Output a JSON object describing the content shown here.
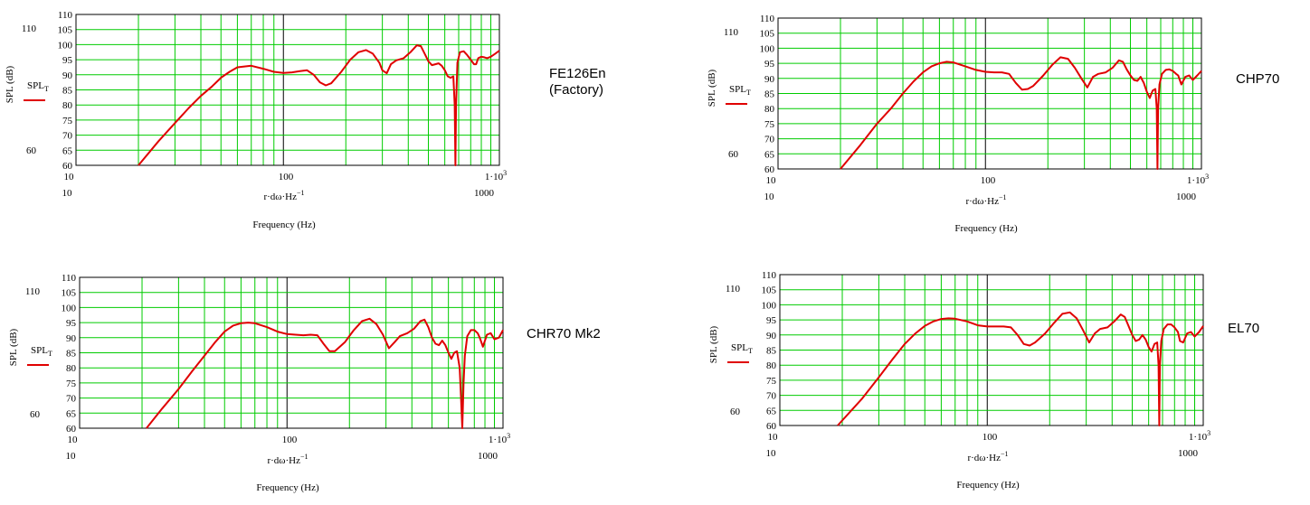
{
  "chart_data": [
    {
      "type": "line",
      "title": "FE126En (Factory)",
      "title_lines": [
        "FE126En",
        "(Factory)"
      ],
      "xlabel": "r·dω·Hz",
      "xlabel_exp": "−1",
      "xlabel2": "Frequency (Hz)",
      "ylabel": "SPL (dB)",
      "legend": "SPL",
      "legend_sub": "T",
      "xscale": "log",
      "xlim": [
        10,
        1100
      ],
      "ylim": [
        60,
        110
      ],
      "grid": true,
      "x_ticks": [
        "10",
        "100",
        "1·10"
      ],
      "x_tick_sup": "3",
      "x_extra_low": "10",
      "x_extra_high": "1000",
      "y_ticks": [
        "110",
        "105",
        "100",
        "95",
        "90",
        "85",
        "80",
        "75",
        "70",
        "65",
        "60"
      ],
      "y_extra_high": "110",
      "y_extra_low": "60",
      "color": "#e00000",
      "series": [
        {
          "x": [
            20,
            25,
            30,
            35,
            40,
            45,
            50,
            55,
            60,
            70,
            80,
            90,
            100,
            110,
            120,
            130,
            140,
            150,
            160,
            170,
            190,
            210,
            230,
            250,
            270,
            290,
            300,
            315,
            330,
            350,
            380,
            410,
            440,
            460,
            480,
            500,
            520,
            540,
            560,
            580,
            600,
            620,
            640,
            660,
            670,
            675,
            680,
            690,
            710,
            740,
            770,
            800,
            830,
            850,
            870,
            900,
            930,
            960,
            1000,
            1050,
            1100
          ],
          "y": [
            60,
            68,
            74,
            79,
            83,
            86,
            89,
            91,
            92.5,
            93,
            92,
            91,
            90.6,
            90.8,
            91.2,
            91.5,
            90,
            87.5,
            86.5,
            87.2,
            91,
            95,
            97.5,
            98.2,
            97,
            94,
            91.5,
            90.5,
            93.5,
            94.8,
            95.5,
            97.5,
            99.8,
            99.5,
            97,
            94.5,
            93.2,
            93.5,
            93.8,
            93,
            91.5,
            89.5,
            89,
            89.5,
            80,
            60,
            80,
            94,
            97.5,
            97.8,
            96.5,
            95,
            93.5,
            93.5,
            95.5,
            96,
            95.8,
            95.5,
            96,
            97,
            98
          ]
        }
      ]
    },
    {
      "type": "line",
      "title": "CHP70",
      "title_lines": [
        "CHP70"
      ],
      "xlabel": "r·dω·Hz",
      "xlabel_exp": "−1",
      "xlabel2": "Frequency (Hz)",
      "ylabel": "SPL (dB)",
      "legend": "SPL",
      "legend_sub": "T",
      "xscale": "log",
      "xlim": [
        10,
        1100
      ],
      "ylim": [
        60,
        110
      ],
      "grid": true,
      "x_ticks": [
        "10",
        "100",
        "1·10"
      ],
      "x_tick_sup": "3",
      "x_extra_low": "10",
      "x_extra_high": "1000",
      "y_ticks": [
        "110",
        "105",
        "100",
        "95",
        "90",
        "85",
        "80",
        "75",
        "70",
        "65",
        "60"
      ],
      "y_extra_high": "110",
      "y_extra_low": "60",
      "color": "#e00000",
      "series": [
        {
          "x": [
            20,
            25,
            30,
            35,
            40,
            45,
            50,
            55,
            60,
            65,
            70,
            80,
            90,
            100,
            110,
            120,
            130,
            140,
            150,
            160,
            170,
            190,
            210,
            230,
            250,
            270,
            290,
            310,
            330,
            350,
            380,
            410,
            440,
            460,
            480,
            500,
            520,
            540,
            560,
            580,
            600,
            620,
            640,
            660,
            670,
            675,
            680,
            690,
            710,
            740,
            770,
            800,
            830,
            850,
            880,
            920,
            960,
            1000,
            1050,
            1100
          ],
          "y": [
            60,
            68,
            75,
            80,
            85,
            89,
            92,
            94,
            95,
            95.5,
            95.3,
            94,
            92.8,
            92.2,
            92,
            92,
            91.5,
            88.5,
            86.3,
            86.5,
            87.5,
            91,
            94.5,
            97,
            96.5,
            93.5,
            90,
            87,
            90.5,
            91.5,
            92,
            93.5,
            96,
            95.5,
            93,
            91,
            89.5,
            89.2,
            90.5,
            88.5,
            85.5,
            83.5,
            86,
            86.5,
            80,
            60,
            80,
            88,
            91.5,
            92.8,
            93,
            92.5,
            91.5,
            91,
            88,
            90.5,
            91,
            89.5,
            91,
            92.5
          ]
        }
      ]
    },
    {
      "type": "line",
      "title": "CHR70 Mk2",
      "title_lines": [
        "CHR70 Mk2"
      ],
      "xlabel": "r·dω·Hz",
      "xlabel_exp": "−1",
      "xlabel2": "Frequency (Hz)",
      "ylabel": "SPL (dB)",
      "legend": "SPL",
      "legend_sub": "T",
      "xscale": "log",
      "xlim": [
        10,
        1100
      ],
      "ylim": [
        60,
        110
      ],
      "grid": true,
      "x_ticks": [
        "10",
        "100",
        "1·10"
      ],
      "x_tick_sup": "3",
      "x_extra_low": "10",
      "x_extra_high": "1000",
      "y_ticks": [
        "110",
        "105",
        "100",
        "95",
        "90",
        "85",
        "80",
        "75",
        "70",
        "65",
        "60"
      ],
      "y_extra_high": "110",
      "y_extra_low": "60",
      "color": "#e00000",
      "series": [
        {
          "x": [
            21,
            25,
            30,
            35,
            40,
            45,
            50,
            55,
            60,
            65,
            70,
            80,
            90,
            100,
            110,
            120,
            130,
            140,
            150,
            160,
            170,
            190,
            210,
            230,
            250,
            270,
            290,
            310,
            330,
            350,
            380,
            410,
            440,
            460,
            480,
            500,
            520,
            540,
            560,
            580,
            600,
            620,
            640,
            660,
            680,
            690,
            700,
            710,
            720,
            740,
            770,
            800,
            830,
            850,
            880,
            920,
            960,
            1000,
            1050,
            1100
          ],
          "y": [
            60,
            66.5,
            73,
            79,
            84,
            88.5,
            92,
            94,
            94.8,
            95,
            94.8,
            93.5,
            92,
            91.2,
            91,
            90.8,
            91,
            90.8,
            88,
            85.5,
            85.5,
            88.5,
            92.5,
            95.5,
            96.3,
            94.5,
            91,
            86.5,
            88.5,
            90.5,
            91.5,
            93,
            95.5,
            96,
            93.5,
            90,
            88,
            87.5,
            89,
            87.5,
            85,
            83,
            85,
            85.5,
            80,
            70,
            60,
            75,
            84,
            90.5,
            92.5,
            92.5,
            91.5,
            90,
            87,
            91,
            91.5,
            89.5,
            90,
            92.5
          ]
        }
      ]
    },
    {
      "type": "line",
      "title": "EL70",
      "title_lines": [
        "EL70"
      ],
      "xlabel": "r·dω·Hz",
      "xlabel_exp": "−1",
      "xlabel2": "Frequency (Hz)",
      "ylabel": "SPL (dB)",
      "legend": "SPL",
      "legend_sub": "T",
      "xscale": "log",
      "xlim": [
        10,
        1100
      ],
      "ylim": [
        60,
        110
      ],
      "grid": true,
      "x_ticks": [
        "10",
        "100",
        "1·10"
      ],
      "x_tick_sup": "3",
      "x_extra_low": "10",
      "x_extra_high": "1000",
      "y_ticks": [
        "110",
        "105",
        "100",
        "95",
        "90",
        "85",
        "80",
        "75",
        "70",
        "65",
        "60"
      ],
      "y_extra_high": "110",
      "y_extra_low": "60",
      "color": "#e00000",
      "series": [
        {
          "x": [
            19,
            25,
            30,
            35,
            40,
            45,
            50,
            55,
            60,
            65,
            70,
            80,
            90,
            100,
            110,
            120,
            130,
            140,
            150,
            160,
            170,
            190,
            210,
            230,
            250,
            270,
            290,
            310,
            330,
            350,
            380,
            410,
            440,
            460,
            480,
            500,
            520,
            540,
            560,
            580,
            600,
            620,
            640,
            660,
            670,
            675,
            680,
            690,
            710,
            740,
            770,
            800,
            830,
            850,
            880,
            920,
            960,
            1000,
            1050,
            1100
          ],
          "y": [
            60,
            69,
            76,
            82,
            87,
            90.5,
            93,
            94.5,
            95.3,
            95.5,
            95.4,
            94.5,
            93.2,
            92.8,
            92.8,
            92.8,
            92.5,
            90,
            87,
            86.5,
            87.5,
            90.5,
            94,
            97,
            97.5,
            95.5,
            91.5,
            87.5,
            90.5,
            92,
            92.5,
            94.5,
            96.8,
            96,
            93,
            90,
            88,
            88.5,
            90,
            88.5,
            86,
            84.5,
            87,
            87.5,
            80,
            60,
            80,
            88,
            92,
            93.5,
            93.5,
            92.5,
            91,
            88,
            87.5,
            90.5,
            91,
            89.5,
            91,
            93
          ]
        }
      ]
    }
  ]
}
